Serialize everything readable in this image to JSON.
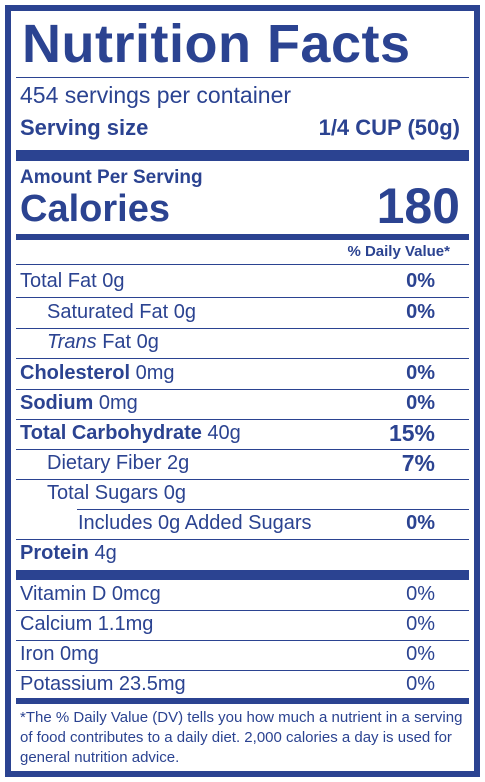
{
  "label": {
    "title": "Nutrition Facts",
    "servings_per_container": "454 servings per container",
    "serving_size_label": "Serving size",
    "serving_size_value": "1/4 CUP (50g)",
    "amount_per_serving": "Amount Per Serving",
    "calories_label": "Calories",
    "calories_value": "180",
    "daily_value_header": "% Daily Value*",
    "nutrients": [
      {
        "name_bold": "",
        "name_italic": "",
        "name": "Total Fat 0g",
        "dv": "0%"
      },
      {
        "name_bold": "",
        "name_italic": "",
        "name": "Saturated Fat 0g",
        "dv": "0%"
      },
      {
        "name_bold": "",
        "name_italic": "Trans",
        "name": " Fat 0g",
        "dv": ""
      },
      {
        "name_bold": "Cholesterol",
        "name_italic": "",
        "name": " 0mg",
        "dv": "0%"
      },
      {
        "name_bold": "Sodium",
        "name_italic": "",
        "name": " 0mg",
        "dv": "0%"
      },
      {
        "name_bold": "Total Carbohydrate",
        "name_italic": "",
        "name": " 40g",
        "dv": "15%"
      },
      {
        "name_bold": "",
        "name_italic": "",
        "name": "Dietary Fiber 2g",
        "dv": "7%"
      },
      {
        "name_bold": "",
        "name_italic": "",
        "name": "Total Sugars 0g",
        "dv": ""
      },
      {
        "name_bold": "",
        "name_italic": "",
        "name": "Includes 0g Added Sugars",
        "dv": "0%"
      },
      {
        "name_bold": "Protein",
        "name_italic": "",
        "name": " 4g",
        "dv": ""
      }
    ],
    "vitamins": [
      {
        "name": "Vitamin D 0mcg",
        "dv": "0%"
      },
      {
        "name": "Calcium 1.1mg",
        "dv": "0%"
      },
      {
        "name": "Iron 0mg",
        "dv": "0%"
      },
      {
        "name": "Potassium 23.5mg",
        "dv": "0%"
      }
    ],
    "footnote": "*The % Daily Value (DV) tells you how much a nutrient in a serving of food contributes to a daily diet. 2,000 calories a day is used for general nutrition advice.",
    "color": "#2b4391"
  }
}
